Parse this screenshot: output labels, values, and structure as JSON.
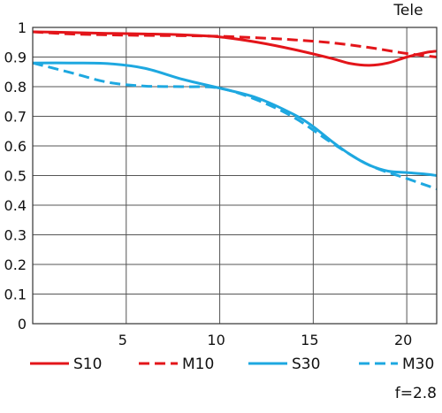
{
  "chart_data": {
    "type": "line",
    "corner_label": "Tele",
    "footnote": "f=2.8",
    "xlim": [
      0,
      21.6
    ],
    "ylim": [
      0,
      1
    ],
    "xticks": [
      5,
      10,
      15,
      20
    ],
    "yticks": [
      0,
      0.1,
      0.2,
      0.3,
      0.4,
      0.5,
      0.6,
      0.7,
      0.8,
      0.9,
      1
    ],
    "ytick_labels": [
      "0",
      "0.1",
      "0.2",
      "0.3",
      "0.4",
      "0.5",
      "0.6",
      "0.7",
      "0.8",
      "0.9",
      "1"
    ],
    "xtick_labels": [
      "5",
      "10",
      "15",
      "20"
    ],
    "grid": true,
    "legend_position": "bottom",
    "series": [
      {
        "name": "S10",
        "color": "#e3151a",
        "dash": "solid",
        "points": [
          [
            0,
            0.985
          ],
          [
            2,
            0.983
          ],
          [
            4,
            0.98
          ],
          [
            6,
            0.978
          ],
          [
            8,
            0.975
          ],
          [
            10,
            0.968
          ],
          [
            12,
            0.95
          ],
          [
            14,
            0.925
          ],
          [
            16,
            0.895
          ],
          [
            17,
            0.878
          ],
          [
            18,
            0.872
          ],
          [
            19,
            0.88
          ],
          [
            20,
            0.9
          ],
          [
            21,
            0.915
          ],
          [
            21.6,
            0.92
          ]
        ]
      },
      {
        "name": "M10",
        "color": "#e3151a",
        "dash": "dashed",
        "points": [
          [
            0,
            0.985
          ],
          [
            2,
            0.978
          ],
          [
            4,
            0.975
          ],
          [
            6,
            0.973
          ],
          [
            8,
            0.972
          ],
          [
            10,
            0.97
          ],
          [
            12,
            0.965
          ],
          [
            14,
            0.958
          ],
          [
            16,
            0.948
          ],
          [
            18,
            0.932
          ],
          [
            20,
            0.912
          ],
          [
            21.6,
            0.9
          ]
        ]
      },
      {
        "name": "S30",
        "color": "#1ea8e0",
        "dash": "solid",
        "points": [
          [
            0,
            0.88
          ],
          [
            2,
            0.88
          ],
          [
            4,
            0.878
          ],
          [
            6,
            0.862
          ],
          [
            8,
            0.825
          ],
          [
            10,
            0.795
          ],
          [
            12,
            0.762
          ],
          [
            14,
            0.705
          ],
          [
            15,
            0.665
          ],
          [
            16,
            0.615
          ],
          [
            17,
            0.57
          ],
          [
            18,
            0.535
          ],
          [
            19,
            0.515
          ],
          [
            20,
            0.51
          ],
          [
            21,
            0.505
          ],
          [
            21.6,
            0.5
          ]
        ]
      },
      {
        "name": "M30",
        "color": "#1ea8e0",
        "dash": "dashed",
        "points": [
          [
            0,
            0.88
          ],
          [
            2,
            0.848
          ],
          [
            4,
            0.815
          ],
          [
            6,
            0.802
          ],
          [
            8,
            0.8
          ],
          [
            10,
            0.795
          ],
          [
            12,
            0.755
          ],
          [
            14,
            0.695
          ],
          [
            16,
            0.61
          ],
          [
            18,
            0.535
          ],
          [
            20,
            0.49
          ],
          [
            21.6,
            0.455
          ]
        ]
      }
    ]
  }
}
